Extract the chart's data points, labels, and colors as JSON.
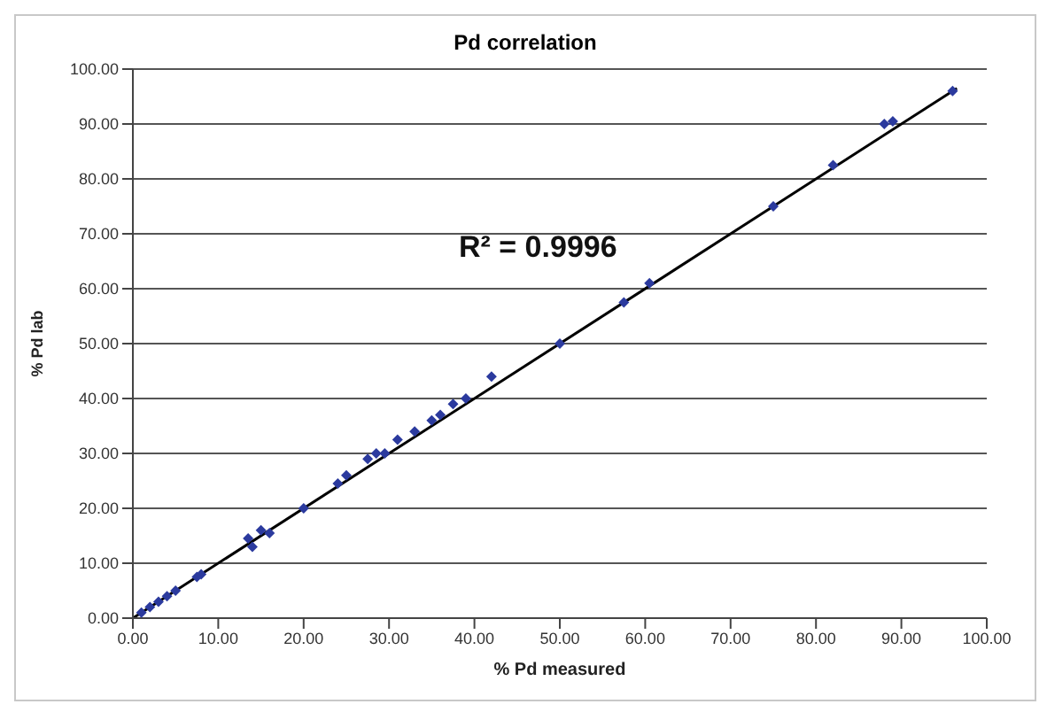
{
  "chart_data": {
    "type": "scatter",
    "title": "Pd correlation",
    "xlabel": "% Pd measured",
    "ylabel": "% Pd lab",
    "xlim": [
      0,
      100
    ],
    "ylim": [
      0,
      100
    ],
    "xticks": [
      {
        "value": 0,
        "label": "0.00"
      },
      {
        "value": 10,
        "label": "10.00"
      },
      {
        "value": 20,
        "label": "20.00"
      },
      {
        "value": 30,
        "label": "30.00"
      },
      {
        "value": 40,
        "label": "40.00"
      },
      {
        "value": 50,
        "label": "50.00"
      },
      {
        "value": 60,
        "label": "60.00"
      },
      {
        "value": 70,
        "label": "70.00"
      },
      {
        "value": 80,
        "label": "80.00"
      },
      {
        "value": 90,
        "label": "90.00"
      },
      {
        "value": 100,
        "label": "100.00"
      }
    ],
    "yticks": [
      {
        "value": 0,
        "label": "0.00"
      },
      {
        "value": 10,
        "label": "10.00"
      },
      {
        "value": 20,
        "label": "20.00"
      },
      {
        "value": 30,
        "label": "30.00"
      },
      {
        "value": 40,
        "label": "40.00"
      },
      {
        "value": 50,
        "label": "50.00"
      },
      {
        "value": 60,
        "label": "60.00"
      },
      {
        "value": 70,
        "label": "70.00"
      },
      {
        "value": 80,
        "label": "80.00"
      },
      {
        "value": 90,
        "label": "90.00"
      },
      {
        "value": 100,
        "label": "100.00"
      }
    ],
    "grid": "y",
    "legend": false,
    "marker": "diamond",
    "annotations": [
      "R² = 0.9996"
    ],
    "series": [
      {
        "color": "#2b3a9e",
        "x": [
          96,
          89,
          88,
          82,
          75,
          60.5,
          57.5,
          50,
          42,
          39,
          37.5,
          36,
          35,
          33,
          31,
          29.5,
          28.5,
          27.5,
          25,
          24,
          20,
          16,
          15,
          14,
          13.5,
          8,
          7.5,
          5,
          4,
          3,
          2,
          1
        ],
        "values": [
          96,
          90.5,
          90,
          82.5,
          75,
          61,
          57.5,
          50,
          44,
          40,
          39,
          37,
          36,
          34,
          32.5,
          30,
          30,
          29,
          26,
          24.5,
          20,
          15.5,
          16,
          13,
          14.5,
          8,
          7.5,
          5,
          4,
          3,
          2,
          1
        ]
      },
      {
        "type": "line",
        "color": "#000000",
        "marker": "none",
        "x": [
          0,
          96.5
        ],
        "values": [
          0,
          96.5
        ]
      }
    ]
  }
}
